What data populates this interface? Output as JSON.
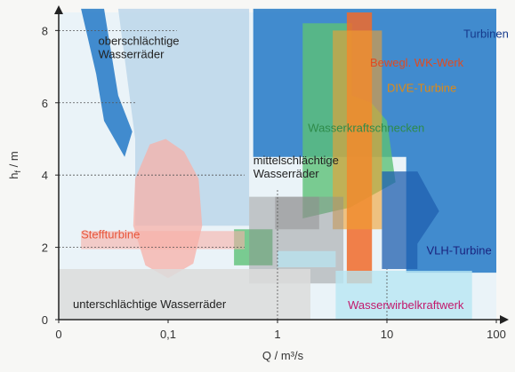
{
  "chart_data": {
    "type": "area",
    "title": "",
    "xlabel": "Q / m³/s",
    "ylabel": "h",
    "ylabel_sub": "f",
    "ylabel_unit": " / m",
    "x_scale": "log",
    "xlim": [
      0.01,
      100
    ],
    "ylim": [
      0,
      8.5
    ],
    "x_ticks": [
      {
        "value": 0.01,
        "label": "0"
      },
      {
        "value": 0.1,
        "label": "0,1"
      },
      {
        "value": 1,
        "label": "1"
      },
      {
        "value": 10,
        "label": "10"
      },
      {
        "value": 100,
        "label": "100"
      }
    ],
    "y_ticks": [
      {
        "value": 0,
        "label": "0"
      },
      {
        "value": 2,
        "label": "2"
      },
      {
        "value": 4,
        "label": "4"
      },
      {
        "value": 6,
        "label": "6"
      },
      {
        "value": 8,
        "label": "8"
      }
    ],
    "series": [
      {
        "name": "Turbinen",
        "color": "#2f80c9",
        "label": {
          "text": "Turbinen",
          "x": 50,
          "y": 7.8,
          "color": "#163a8c"
        },
        "polygons": [
          {
            "opacity": 0.9,
            "points": [
              [
                0.016,
                8.6
              ],
              [
                0.026,
                8.6
              ],
              [
                0.035,
                6.2
              ],
              [
                0.047,
                5.2
              ],
              [
                0.04,
                4.5
              ],
              [
                0.026,
                5.5
              ],
              [
                0.022,
                6.8
              ]
            ]
          },
          {
            "opacity": 0.9,
            "points": [
              [
                0.6,
                8.6
              ],
              [
                100,
                8.6
              ],
              [
                100,
                1.3
              ],
              [
                15,
                1.3
              ],
              [
                15,
                4.5
              ],
              [
                0.6,
                4.5
              ]
            ]
          }
        ]
      },
      {
        "name": "oberschlächtige Wasserräder",
        "color": "#bcd6ea",
        "label": {
          "text": "oberschlächtige\nWasserräder",
          "x": 0.023,
          "y": 7.6,
          "color": "#222"
        },
        "polygons": [
          {
            "opacity": 0.85,
            "points": [
              [
                0.035,
                8.6
              ],
              [
                0.55,
                8.6
              ],
              [
                0.55,
                2.6
              ],
              [
                0.05,
                2.6
              ],
              [
                0.05,
                5.0
              ]
            ]
          }
        ]
      },
      {
        "name": "Wasserkraftschnecken",
        "color": "#5cc077",
        "label": {
          "text": "Wasserkraftschnecken",
          "x": 1.9,
          "y": 5.2,
          "color": "#2e8b4a"
        },
        "polygons": [
          {
            "opacity": 0.8,
            "points": [
              [
                1.7,
                8.2
              ],
              [
                4.8,
                8.2
              ],
              [
                4.8,
                6.2
              ],
              [
                7.2,
                6.0
              ],
              [
                10,
                5.5
              ],
              [
                12,
                3.8
              ],
              [
                4.6,
                3.1
              ],
              [
                1.7,
                2.8
              ]
            ]
          },
          {
            "opacity": 0.8,
            "points": [
              [
                0.4,
                2.5
              ],
              [
                0.9,
                2.5
              ],
              [
                0.9,
                1.5
              ],
              [
                0.4,
                1.5
              ]
            ]
          }
        ]
      },
      {
        "name": "Bewegl. WK-Werk",
        "color": "#f16a2a",
        "label": {
          "text": "Bewegl. WK-Werk",
          "x": 7,
          "y": 7.0,
          "color": "#e24a1e"
        },
        "polygons": [
          {
            "opacity": 0.85,
            "points": [
              [
                4.3,
                8.5
              ],
              [
                7.3,
                8.5
              ],
              [
                7.3,
                1.0
              ],
              [
                4.3,
                1.0
              ]
            ]
          }
        ]
      },
      {
        "name": "DIVE-Turbine",
        "color": "#f0a030",
        "label": {
          "text": "DIVE-Turbine",
          "x": 10,
          "y": 6.3,
          "color": "#e08a14"
        },
        "polygons": [
          {
            "opacity": 0.6,
            "points": [
              [
                3.2,
                8.0
              ],
              [
                9,
                8.0
              ],
              [
                9,
                2.5
              ],
              [
                3.2,
                2.5
              ]
            ]
          }
        ]
      },
      {
        "name": "Steffturbine",
        "color": "#f7b0a8",
        "label": {
          "text": "Steffturbine",
          "x": 0.016,
          "y": 2.25,
          "color": "#e8553a"
        },
        "polygons": [
          {
            "opacity": 0.75,
            "points": [
              [
                0.068,
                4.85
              ],
              [
                0.095,
                5.0
              ],
              [
                0.14,
                4.65
              ],
              [
                0.19,
                3.9
              ],
              [
                0.205,
                2.6
              ],
              [
                0.17,
                1.55
              ],
              [
                0.1,
                1.15
              ],
              [
                0.062,
                1.5
              ],
              [
                0.048,
                2.6
              ],
              [
                0.05,
                3.9
              ]
            ]
          },
          {
            "opacity": 0.6,
            "points": [
              [
                0.016,
                2.45
              ],
              [
                0.5,
                2.45
              ],
              [
                0.5,
                1.95
              ],
              [
                0.016,
                1.95
              ]
            ]
          }
        ]
      },
      {
        "name": "mittelschlächtige Wasserräder",
        "color": "#8e8e8e",
        "label": {
          "text": "mittelschlächtige\nWasserräder",
          "x": 0.6,
          "y": 4.3,
          "color": "#222"
        },
        "polygons": [
          {
            "opacity": 0.45,
            "points": [
              [
                0.55,
                3.4
              ],
              [
                4.0,
                3.4
              ],
              [
                4.0,
                1.0
              ],
              [
                0.55,
                1.0
              ]
            ]
          },
          {
            "opacity": 0.5,
            "points": [
              [
                0.95,
                3.4
              ],
              [
                2.4,
                3.4
              ],
              [
                2.4,
                2.5
              ],
              [
                0.95,
                2.5
              ]
            ]
          }
        ]
      },
      {
        "name": "unterschlächtige Wasserräder",
        "color": "#dcdcdc",
        "label": {
          "text": "unterschlächtige Wasserräder",
          "x": 0.0135,
          "y": 0.32,
          "color": "#222"
        },
        "polygons": [
          {
            "opacity": 0.85,
            "points": [
              [
                0.01,
                1.4
              ],
              [
                2.0,
                1.4
              ],
              [
                2.0,
                0.02
              ],
              [
                0.01,
                0.02
              ]
            ]
          }
        ]
      },
      {
        "name": "VLH-Turbine",
        "color": "#1f5faf",
        "label": {
          "text": "VLH-Turbine",
          "x": 23,
          "y": 1.8,
          "color": "#1a237e"
        },
        "polygons": [
          {
            "opacity": 0.75,
            "points": [
              [
                9,
                4.1
              ],
              [
                19,
                4.1
              ],
              [
                30,
                3.0
              ],
              [
                19,
                2.1
              ],
              [
                19,
                1.4
              ],
              [
                9,
                1.4
              ]
            ]
          }
        ]
      },
      {
        "name": "Wasserwirbelkraftwerk",
        "color": "#b8e6f2",
        "label": {
          "text": "Wasserwirbelkraftwerk",
          "x": 4.4,
          "y": 0.3,
          "color": "#c2186b"
        },
        "polygons": [
          {
            "opacity": 0.8,
            "points": [
              [
                3.4,
                1.35
              ],
              [
                60,
                1.35
              ],
              [
                60,
                0.02
              ],
              [
                3.4,
                0.02
              ]
            ]
          },
          {
            "opacity": 0.7,
            "points": [
              [
                1.0,
                1.9
              ],
              [
                3.4,
                1.9
              ],
              [
                3.4,
                1.45
              ],
              [
                1.0,
                1.45
              ]
            ]
          }
        ]
      }
    ],
    "background_color": "#eaf3f8",
    "reference_lines": [
      {
        "y": 8,
        "x_to": 0.12
      },
      {
        "y": 6,
        "x_to": 0.05
      },
      {
        "y": 4,
        "x_to": 0.5
      },
      {
        "y": 2,
        "x_to": 0.5
      },
      {
        "x": 1,
        "y_to": 3.6
      },
      {
        "x": 10,
        "y_to": 1.4
      }
    ],
    "grid": false
  }
}
